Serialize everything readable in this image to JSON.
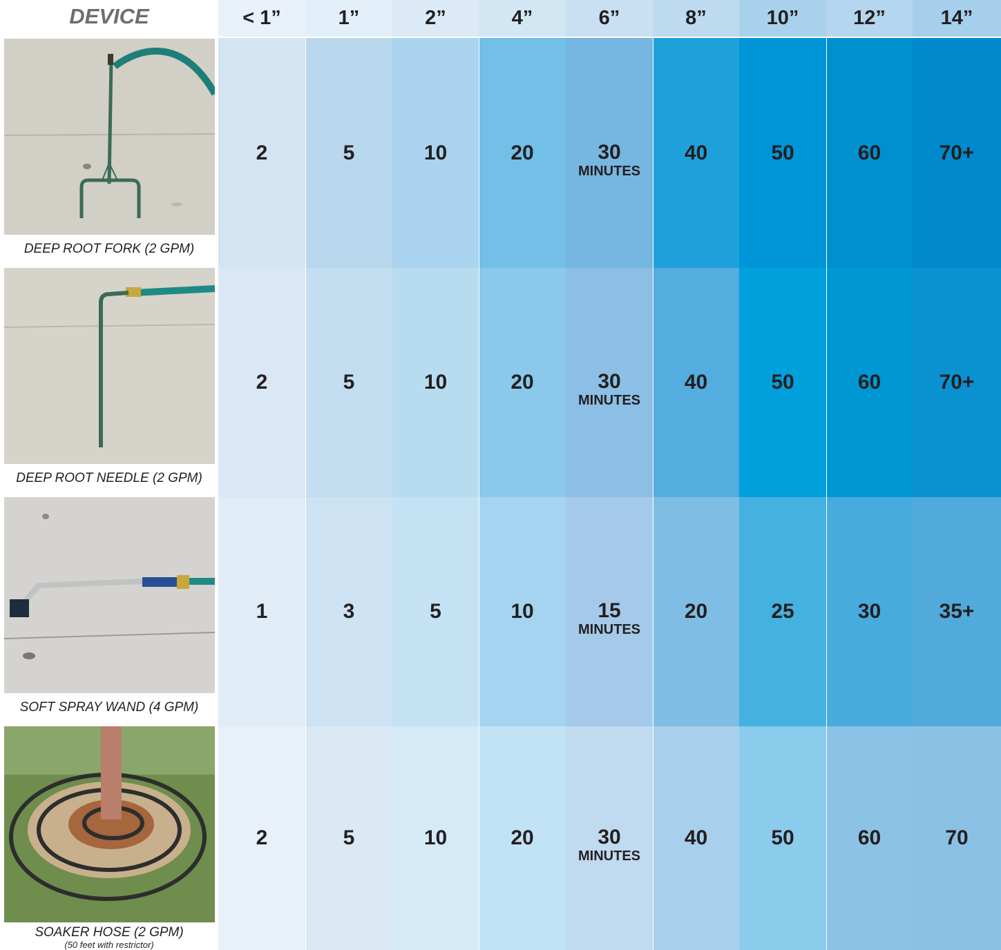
{
  "device_header": "DEVICE",
  "columns": [
    "< 1”",
    "1”",
    "2”",
    "4”",
    "6”",
    "8”",
    "10”",
    "12”",
    "14”"
  ],
  "devices": [
    {
      "caption": "DEEP ROOT FORK (2 GPM)",
      "subcaption": "",
      "photo_icon": "deep-root-fork-photo",
      "values": [
        "2",
        "5",
        "10",
        "20",
        "30",
        "40",
        "50",
        "60",
        "70+"
      ],
      "unit": "MINUTES"
    },
    {
      "caption": "DEEP ROOT NEEDLE (2 GPM)",
      "subcaption": "",
      "photo_icon": "deep-root-needle-photo",
      "values": [
        "2",
        "5",
        "10",
        "20",
        "30",
        "40",
        "50",
        "60",
        "70+"
      ],
      "unit": "MINUTES"
    },
    {
      "caption": "SOFT SPRAY WAND (4 GPM)",
      "subcaption": "",
      "photo_icon": "soft-spray-wand-photo",
      "values": [
        "1",
        "3",
        "5",
        "10",
        "15",
        "20",
        "25",
        "30",
        "35+"
      ],
      "unit": "MINUTES"
    },
    {
      "caption": "SOAKER HOSE (2 GPM)",
      "subcaption": "(50 feet with restrictor)",
      "photo_icon": "soaker-hose-photo",
      "values": [
        "2",
        "5",
        "10",
        "20",
        "30",
        "40",
        "50",
        "60",
        "70"
      ],
      "unit": "MINUTES"
    }
  ],
  "colors": {
    "header": [
      "#e8f1f9",
      "#e3eff8",
      "#dbeaf6",
      "#d3e6f4",
      "#c9e0f2",
      "#bddaef",
      "#a8d1ec",
      "#b4d6ee",
      "#a6cfeb"
    ],
    "rows": [
      [
        "#d3e4f2",
        "#b9d7ec",
        "#a9d3ee",
        "#72bfe7",
        "#76b7e1",
        "#1ea1db",
        "#0095d7",
        "#008fcf",
        "#0089cb"
      ],
      [
        "#dae7f4",
        "#c3def1",
        "#b7dcf0",
        "#8ac9ec",
        "#8bbfe5",
        "#54acdf",
        "#00a0dc",
        "#0097d5",
        "#0a92d0"
      ],
      [
        "#e0ecf6",
        "#cde3f3",
        "#c4e2f4",
        "#a4d4f0",
        "#a5c9e9",
        "#80bde4",
        "#45b1e1",
        "#47abdd",
        "#52a9db"
      ],
      [
        "#e8f0f8",
        "#dbe9f5",
        "#d5e9f6",
        "#c2e2f5",
        "#c0daef",
        "#a8cfec",
        "#8bcbec",
        "#8cc2e6",
        "#8bc0e5"
      ]
    ]
  }
}
